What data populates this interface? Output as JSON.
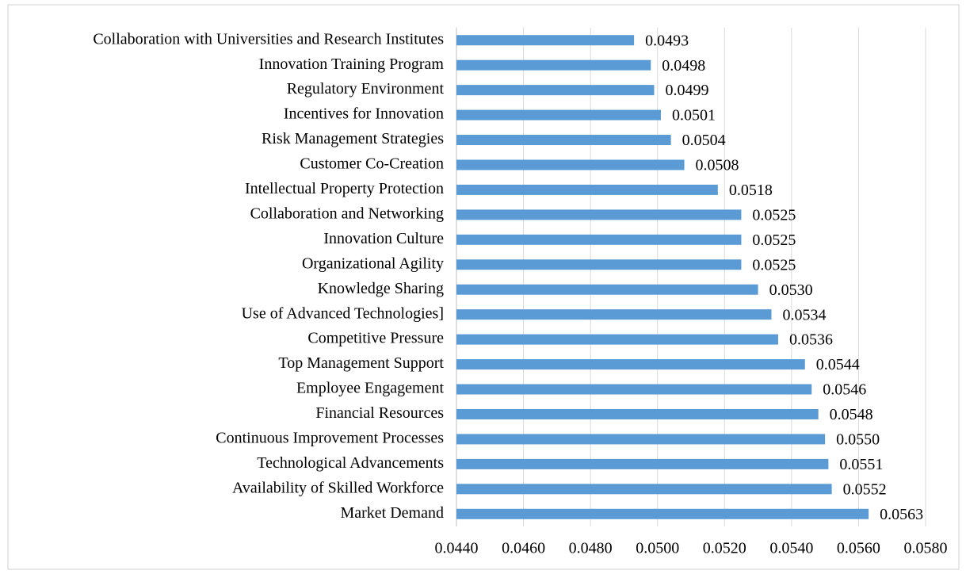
{
  "chart_data": {
    "type": "barh",
    "categories": [
      "Collaboration with Universities and Research Institutes",
      "Innovation Training Program",
      "Regulatory Environment",
      "Incentives for Innovation",
      "Risk Management Strategies",
      "Customer Co-Creation",
      "Intellectual Property Protection",
      "Collaboration and Networking",
      "Innovation Culture",
      "Organizational Agility",
      "Knowledge Sharing",
      "Use of Advanced Technologies]",
      "Competitive Pressure",
      "Top Management Support",
      "Employee Engagement",
      "Financial Resources",
      "Continuous Improvement Processes",
      "Technological Advancements",
      "Availability of Skilled Workforce",
      "Market Demand"
    ],
    "values": [
      0.0493,
      0.0498,
      0.0499,
      0.0501,
      0.0504,
      0.0508,
      0.0518,
      0.0525,
      0.0525,
      0.0525,
      0.053,
      0.0534,
      0.0536,
      0.0544,
      0.0546,
      0.0548,
      0.055,
      0.0551,
      0.0552,
      0.0563
    ],
    "value_labels": [
      "0.0493",
      "0.0498",
      "0.0499",
      "0.0501",
      "0.0504",
      "0.0508",
      "0.0518",
      "0.0525",
      "0.0525",
      "0.0525",
      "0.0530",
      "0.0534",
      "0.0536",
      "0.0544",
      "0.0546",
      "0.0548",
      "0.0550",
      "0.0551",
      "0.0552",
      "0.0563"
    ],
    "color": "#5b9bd5",
    "xlim": [
      0.044,
      0.058
    ],
    "xticks": [
      {
        "value": 0.044,
        "label": "0.0440"
      },
      {
        "value": 0.046,
        "label": "0.0460"
      },
      {
        "value": 0.048,
        "label": "0.0480"
      },
      {
        "value": 0.05,
        "label": "0.0500"
      },
      {
        "value": 0.052,
        "label": "0.0520"
      },
      {
        "value": 0.054,
        "label": "0.0540"
      },
      {
        "value": 0.056,
        "label": "0.0560"
      },
      {
        "value": 0.058,
        "label": "0.0580"
      }
    ],
    "grid": true
  }
}
